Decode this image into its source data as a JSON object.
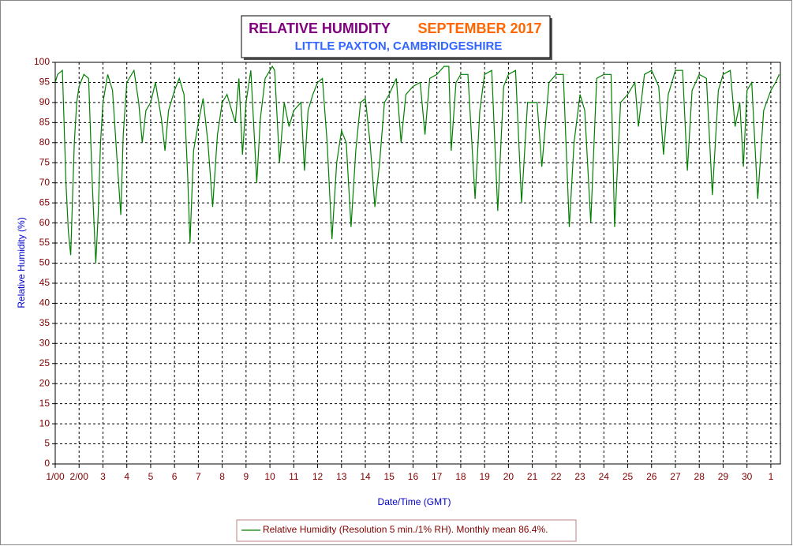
{
  "chart_data": {
    "type": "line",
    "title": "RELATIVE HUMIDITY",
    "title_period": "SEPTEMBER 2017",
    "subtitle": "LITTLE PAXTON, CAMBRIDGESHIRE",
    "x_label": "Date/Time (GMT)",
    "y_label": "Relative Humidity (%)",
    "grid": true,
    "xlim": [
      0,
      30.4
    ],
    "ylim": [
      0,
      100
    ],
    "yticks": [
      0,
      5,
      10,
      15,
      20,
      25,
      30,
      35,
      40,
      45,
      50,
      55,
      60,
      65,
      70,
      75,
      80,
      85,
      90,
      95,
      100
    ],
    "xticks": [
      {
        "value": 0,
        "label": "1/00"
      },
      {
        "value": 1,
        "label": "2/00"
      },
      {
        "value": 2,
        "label": "3"
      },
      {
        "value": 3,
        "label": "4"
      },
      {
        "value": 4,
        "label": "5"
      },
      {
        "value": 5,
        "label": "6"
      },
      {
        "value": 6,
        "label": "7"
      },
      {
        "value": 7,
        "label": "8"
      },
      {
        "value": 8,
        "label": "9"
      },
      {
        "value": 9,
        "label": "10"
      },
      {
        "value": 10,
        "label": "11"
      },
      {
        "value": 11,
        "label": "12"
      },
      {
        "value": 12,
        "label": "13"
      },
      {
        "value": 13,
        "label": "14"
      },
      {
        "value": 14,
        "label": "15"
      },
      {
        "value": 15,
        "label": "16"
      },
      {
        "value": 16,
        "label": "17"
      },
      {
        "value": 17,
        "label": "18"
      },
      {
        "value": 18,
        "label": "19"
      },
      {
        "value": 19,
        "label": "20"
      },
      {
        "value": 20,
        "label": "21"
      },
      {
        "value": 21,
        "label": "22"
      },
      {
        "value": 22,
        "label": "23"
      },
      {
        "value": 23,
        "label": "24"
      },
      {
        "value": 24,
        "label": "25"
      },
      {
        "value": 25,
        "label": "26"
      },
      {
        "value": 26,
        "label": "27"
      },
      {
        "value": 27,
        "label": "28"
      },
      {
        "value": 28,
        "label": "29"
      },
      {
        "value": 29,
        "label": "30"
      },
      {
        "value": 30,
        "label": "1"
      }
    ],
    "x": [
      0,
      0.1,
      0.3,
      0.45,
      0.55,
      0.65,
      0.8,
      0.9,
      1.0,
      1.2,
      1.4,
      1.55,
      1.7,
      1.8,
      1.9,
      2.0,
      2.2,
      2.4,
      2.6,
      2.75,
      2.85,
      3.0,
      3.3,
      3.5,
      3.65,
      3.8,
      4.0,
      4.2,
      4.45,
      4.6,
      4.75,
      5.0,
      5.2,
      5.4,
      5.55,
      5.65,
      5.8,
      6.0,
      6.2,
      6.4,
      6.6,
      6.8,
      7.0,
      7.2,
      7.4,
      7.55,
      7.7,
      7.85,
      8.0,
      8.2,
      8.45,
      8.6,
      8.8,
      9.1,
      9.2,
      9.4,
      9.6,
      9.8,
      10.0,
      10.3,
      10.45,
      10.6,
      10.8,
      11.0,
      11.2,
      11.4,
      11.6,
      11.8,
      12.0,
      12.2,
      12.4,
      12.6,
      12.8,
      13.0,
      13.2,
      13.4,
      13.6,
      13.8,
      14.0,
      14.3,
      14.5,
      14.7,
      15.0,
      15.3,
      15.5,
      15.7,
      16.0,
      16.3,
      16.5,
      16.6,
      16.8,
      17.0,
      17.3,
      17.6,
      17.8,
      18.0,
      18.3,
      18.55,
      18.8,
      19.0,
      19.3,
      19.55,
      19.8,
      20.0,
      20.2,
      20.4,
      20.7,
      21.0,
      21.3,
      21.55,
      21.75,
      22.0,
      22.2,
      22.45,
      22.7,
      23.0,
      23.3,
      23.45,
      23.7,
      24.0,
      24.3,
      24.45,
      24.7,
      25.0,
      25.3,
      25.5,
      25.7,
      26.0,
      26.3,
      26.5,
      26.7,
      27.0,
      27.3,
      27.55,
      27.8,
      28.0,
      28.3,
      28.5,
      28.7,
      28.85,
      29.0,
      29.2,
      29.45,
      29.7,
      30.0,
      30.2,
      30.35
    ],
    "series": [
      {
        "name": "Relative Humidity (Resolution 5 min./1% RH). Monthly mean 86.4%.",
        "color": "#008000",
        "values": [
          95,
          97,
          98,
          70,
          58,
          52,
          80,
          90,
          94,
          97,
          96,
          70,
          50,
          62,
          80,
          90,
          97,
          93,
          75,
          62,
          82,
          95,
          98,
          90,
          80,
          88,
          90,
          95,
          86,
          78,
          88,
          93,
          96,
          92,
          72,
          55,
          78,
          85,
          91,
          80,
          64,
          82,
          90,
          92,
          88,
          85,
          96,
          77,
          90,
          98,
          70,
          86,
          96,
          99,
          98,
          75,
          90,
          84,
          88,
          90,
          73,
          88,
          92,
          95,
          96,
          80,
          56,
          75,
          83,
          80,
          59,
          78,
          90,
          91,
          80,
          64,
          75,
          90,
          92,
          96,
          80,
          92,
          94,
          95,
          82,
          96,
          97,
          99,
          99,
          78,
          95,
          97,
          97,
          66,
          88,
          97,
          98,
          63,
          94,
          97,
          98,
          65,
          90,
          90,
          90,
          74,
          95,
          97,
          97,
          59,
          80,
          92,
          88,
          60,
          96,
          97,
          97,
          59,
          90,
          92,
          95,
          84,
          97,
          98,
          94,
          77,
          92,
          98,
          98,
          73,
          93,
          97,
          96,
          67,
          93,
          97,
          98,
          84,
          90,
          74,
          93,
          95,
          66,
          88,
          93,
          95,
          97
        ]
      }
    ]
  }
}
